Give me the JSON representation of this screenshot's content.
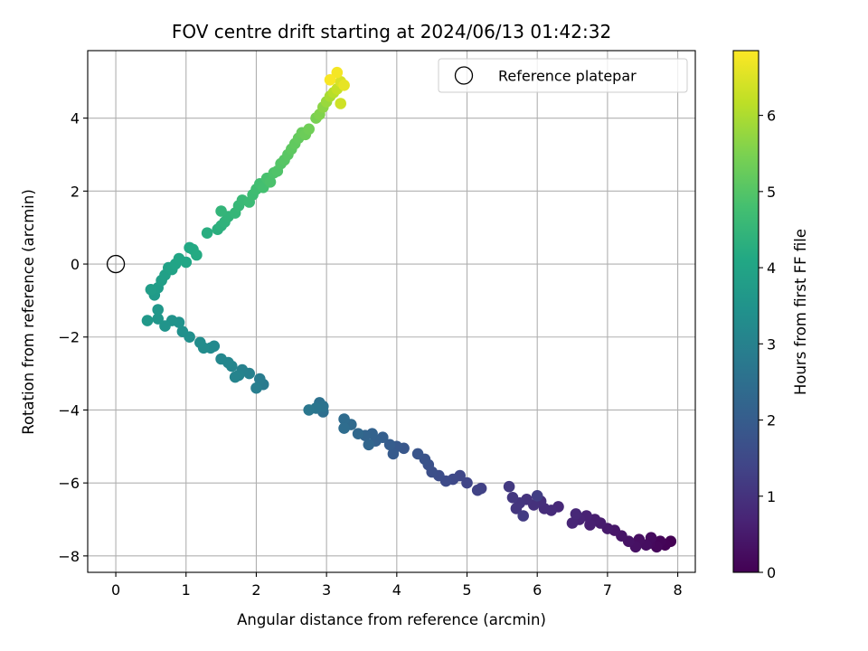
{
  "chart_data": {
    "type": "scatter",
    "title": "FOV centre drift starting at 2024/06/13 01:42:32",
    "xlabel": "Angular distance from reference (arcmin)",
    "ylabel": "Rotation from reference (arcmin)",
    "xlim": [
      -0.4,
      8.25
    ],
    "ylim": [
      -8.45,
      5.85
    ],
    "xticks": [
      "0",
      "1",
      "2",
      "3",
      "4",
      "5",
      "6",
      "7",
      "8"
    ],
    "yticks": [
      "−8",
      "−6",
      "−4",
      "−2",
      "0",
      "2",
      "4"
    ],
    "grid": true,
    "legend": {
      "placement": "top-right",
      "label": "Reference platepar"
    },
    "reference_point": {
      "x": 0,
      "y": 0
    },
    "colorbar": {
      "label": "Hours from first FF file",
      "range": [
        0,
        6.85
      ],
      "ticks": [
        "0",
        "1",
        "2",
        "3",
        "4",
        "5",
        "6"
      ],
      "colormap": "viridis"
    },
    "points_xyt": [
      [
        7.9,
        -7.6,
        0.0
      ],
      [
        7.82,
        -7.7,
        0.04
      ],
      [
        7.75,
        -7.6,
        0.08
      ],
      [
        7.7,
        -7.75,
        0.12
      ],
      [
        7.6,
        -7.65,
        0.16
      ],
      [
        7.62,
        -7.5,
        0.2
      ],
      [
        7.55,
        -7.7,
        0.24
      ],
      [
        7.45,
        -7.55,
        0.28
      ],
      [
        7.4,
        -7.75,
        0.32
      ],
      [
        7.3,
        -7.6,
        0.36
      ],
      [
        7.2,
        -7.45,
        0.4
      ],
      [
        7.1,
        -7.3,
        0.44
      ],
      [
        7.0,
        -7.25,
        0.48
      ],
      [
        6.9,
        -7.1,
        0.52
      ],
      [
        6.82,
        -7.0,
        0.56
      ],
      [
        6.75,
        -7.15,
        0.6
      ],
      [
        6.7,
        -6.9,
        0.64
      ],
      [
        6.6,
        -7.0,
        0.68
      ],
      [
        6.5,
        -7.1,
        0.72
      ],
      [
        6.55,
        -6.85,
        0.76
      ],
      [
        6.3,
        -6.65,
        0.8
      ],
      [
        6.2,
        -6.75,
        0.84
      ],
      [
        6.1,
        -6.7,
        0.88
      ],
      [
        6.05,
        -6.5,
        0.92
      ],
      [
        5.95,
        -6.6,
        0.96
      ],
      [
        5.85,
        -6.45,
        1.0
      ],
      [
        5.75,
        -6.55,
        1.04
      ],
      [
        5.7,
        -6.7,
        1.08
      ],
      [
        5.65,
        -6.4,
        1.12
      ],
      [
        5.6,
        -6.1,
        1.16
      ],
      [
        5.8,
        -6.9,
        1.2
      ],
      [
        6.0,
        -6.35,
        1.24
      ],
      [
        5.2,
        -6.15,
        1.3
      ],
      [
        5.15,
        -6.2,
        1.35
      ],
      [
        5.0,
        -6.0,
        1.4
      ],
      [
        4.9,
        -5.8,
        1.45
      ],
      [
        4.8,
        -5.9,
        1.5
      ],
      [
        4.7,
        -5.95,
        1.55
      ],
      [
        4.6,
        -5.8,
        1.6
      ],
      [
        4.5,
        -5.7,
        1.65
      ],
      [
        4.45,
        -5.5,
        1.7
      ],
      [
        4.4,
        -5.35,
        1.75
      ],
      [
        4.3,
        -5.2,
        1.8
      ],
      [
        4.1,
        -5.05,
        1.85
      ],
      [
        4.0,
        -5.0,
        1.9
      ],
      [
        3.95,
        -5.2,
        1.95
      ],
      [
        3.9,
        -4.95,
        2.0
      ],
      [
        3.8,
        -4.75,
        2.05
      ],
      [
        3.7,
        -4.85,
        2.1
      ],
      [
        3.65,
        -4.65,
        2.15
      ],
      [
        3.55,
        -4.7,
        2.2
      ],
      [
        3.6,
        -4.95,
        2.25
      ],
      [
        3.45,
        -4.65,
        2.3
      ],
      [
        3.35,
        -4.4,
        2.35
      ],
      [
        3.25,
        -4.25,
        2.4
      ],
      [
        3.25,
        -4.5,
        2.45
      ],
      [
        2.95,
        -4.05,
        2.5
      ],
      [
        2.9,
        -3.8,
        2.55
      ],
      [
        2.95,
        -3.9,
        2.6
      ],
      [
        2.85,
        -3.95,
        2.65
      ],
      [
        2.75,
        -4.0,
        2.7
      ],
      [
        2.1,
        -3.3,
        2.8
      ],
      [
        2.05,
        -3.15,
        2.85
      ],
      [
        2.0,
        -3.4,
        2.9
      ],
      [
        1.9,
        -3.0,
        2.95
      ],
      [
        1.8,
        -2.9,
        3.0
      ],
      [
        1.75,
        -3.05,
        3.03
      ],
      [
        1.7,
        -3.1,
        3.06
      ],
      [
        1.65,
        -2.8,
        3.1
      ],
      [
        1.6,
        -2.7,
        3.13
      ],
      [
        1.5,
        -2.6,
        3.16
      ],
      [
        1.4,
        -2.25,
        3.2
      ],
      [
        1.35,
        -2.3,
        3.24
      ],
      [
        1.25,
        -2.3,
        3.28
      ],
      [
        1.2,
        -2.15,
        3.32
      ],
      [
        1.05,
        -2.0,
        3.36
      ],
      [
        0.95,
        -1.85,
        3.4
      ],
      [
        0.9,
        -1.6,
        3.44
      ],
      [
        0.8,
        -1.55,
        3.48
      ],
      [
        0.7,
        -1.7,
        3.52
      ],
      [
        0.6,
        -1.5,
        3.56
      ],
      [
        0.6,
        -1.25,
        3.6
      ],
      [
        0.45,
        -1.55,
        3.64
      ],
      [
        0.55,
        -0.85,
        3.7
      ],
      [
        0.6,
        -0.65,
        3.74
      ],
      [
        0.5,
        -0.7,
        3.78
      ],
      [
        0.65,
        -0.45,
        3.82
      ],
      [
        0.7,
        -0.3,
        3.86
      ],
      [
        0.75,
        -0.1,
        3.9
      ],
      [
        0.8,
        -0.15,
        3.94
      ],
      [
        0.85,
        0.0,
        3.98
      ],
      [
        0.9,
        0.15,
        4.02
      ],
      [
        1.0,
        0.05,
        4.06
      ],
      [
        1.05,
        0.45,
        4.1
      ],
      [
        1.1,
        0.4,
        4.14
      ],
      [
        1.15,
        0.25,
        4.18
      ],
      [
        1.3,
        0.85,
        4.25
      ],
      [
        1.45,
        0.95,
        4.3
      ],
      [
        1.5,
        1.05,
        4.35
      ],
      [
        1.55,
        1.15,
        4.4
      ],
      [
        1.6,
        1.3,
        4.44
      ],
      [
        1.5,
        1.45,
        4.48
      ],
      [
        1.7,
        1.4,
        4.52
      ],
      [
        1.75,
        1.6,
        4.56
      ],
      [
        1.8,
        1.75,
        4.6
      ],
      [
        1.9,
        1.7,
        4.64
      ],
      [
        1.95,
        1.9,
        4.68
      ],
      [
        2.0,
        2.05,
        4.72
      ],
      [
        2.05,
        2.2,
        4.76
      ],
      [
        2.1,
        2.1,
        4.8
      ],
      [
        2.15,
        2.35,
        4.84
      ],
      [
        2.2,
        2.25,
        4.88
      ],
      [
        2.25,
        2.5,
        4.92
      ],
      [
        2.3,
        2.55,
        4.96
      ],
      [
        2.35,
        2.75,
        5.0
      ],
      [
        2.4,
        2.85,
        5.04
      ],
      [
        2.45,
        3.0,
        5.08
      ],
      [
        2.5,
        3.15,
        5.12
      ],
      [
        2.55,
        3.3,
        5.16
      ],
      [
        2.6,
        3.45,
        5.2
      ],
      [
        2.65,
        3.6,
        5.25
      ],
      [
        2.7,
        3.55,
        5.3
      ],
      [
        2.75,
        3.7,
        5.35
      ],
      [
        2.85,
        4.0,
        5.45
      ],
      [
        2.9,
        4.1,
        5.55
      ],
      [
        2.95,
        4.3,
        5.65
      ],
      [
        3.0,
        4.45,
        5.8
      ],
      [
        3.05,
        4.6,
        5.95
      ],
      [
        3.1,
        4.7,
        6.1
      ],
      [
        3.15,
        4.8,
        6.25
      ],
      [
        3.2,
        4.4,
        6.35
      ],
      [
        3.2,
        5.0,
        6.45
      ],
      [
        3.25,
        4.9,
        6.6
      ],
      [
        3.15,
        5.25,
        6.75
      ],
      [
        3.05,
        5.05,
        6.8
      ]
    ]
  }
}
